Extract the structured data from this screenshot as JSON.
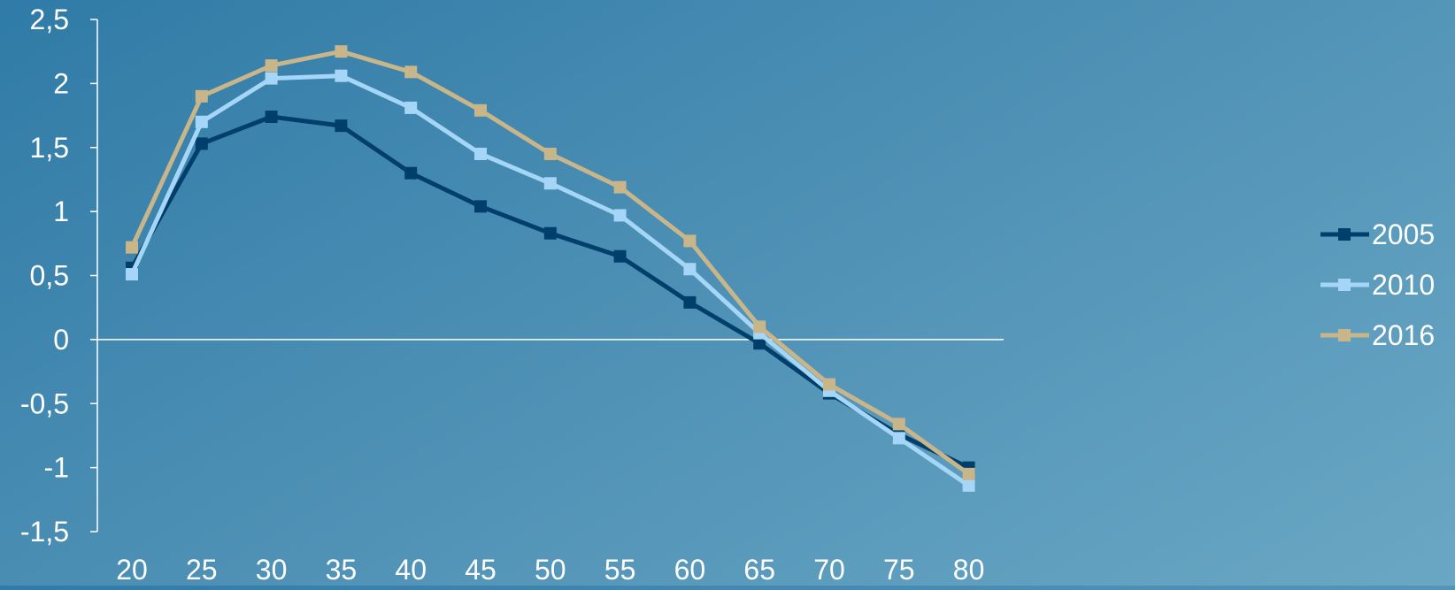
{
  "chart_data": {
    "type": "line",
    "title": "",
    "xlabel": "",
    "ylabel": "",
    "categories": [
      "20",
      "25",
      "30",
      "35",
      "40",
      "45",
      "50",
      "55",
      "60",
      "65",
      "70",
      "75",
      "80"
    ],
    "ylim": [
      -1.5,
      2.5
    ],
    "yticks": [
      "2,5",
      "2",
      "1,5",
      "1",
      "0,5",
      "0",
      "-0,5",
      "-1",
      "-1,5"
    ],
    "ytick_values": [
      2.5,
      2,
      1.5,
      1,
      0.5,
      0,
      -0.5,
      -1,
      -1.5
    ],
    "grid": false,
    "zero_line": true,
    "legend_position": "right",
    "series": [
      {
        "name": "2005",
        "color": "#003f6b",
        "marker": "square",
        "values": [
          0.56,
          1.53,
          1.74,
          1.67,
          1.3,
          1.04,
          0.83,
          0.65,
          0.29,
          -0.03,
          -0.42,
          -0.74,
          -1.0
        ]
      },
      {
        "name": "2010",
        "color": "#a6d6f7",
        "marker": "square",
        "values": [
          0.51,
          1.7,
          2.04,
          2.06,
          1.81,
          1.45,
          1.22,
          0.97,
          0.55,
          0.05,
          -0.4,
          -0.77,
          -1.14
        ]
      },
      {
        "name": "2016",
        "color": "#c8b58a",
        "marker": "square",
        "values": [
          0.72,
          1.9,
          2.14,
          2.25,
          2.09,
          1.79,
          1.45,
          1.19,
          0.77,
          0.1,
          -0.35,
          -0.66,
          -1.05
        ]
      }
    ]
  }
}
